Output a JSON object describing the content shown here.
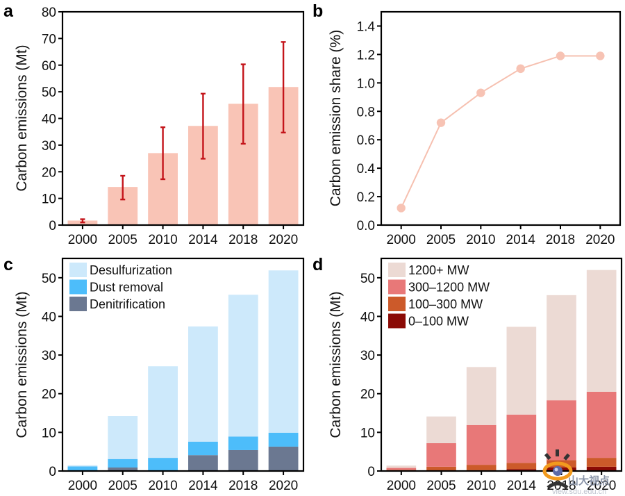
{
  "chart_data": [
    {
      "panel": "a",
      "type": "bar",
      "title": "",
      "xlabel": "",
      "ylabel": "Carbon emissions (Mt)",
      "categories": [
        "2000",
        "2005",
        "2010",
        "2014",
        "2018",
        "2020"
      ],
      "values": [
        1.7,
        14.3,
        27.0,
        37.2,
        45.5,
        51.8
      ],
      "error_low": [
        1.0,
        9.6,
        17.2,
        24.9,
        30.5,
        34.7
      ],
      "error_high": [
        2.2,
        18.5,
        36.7,
        49.3,
        60.3,
        68.7
      ],
      "ylim": [
        0,
        80
      ],
      "yticks": [
        0,
        10,
        20,
        30,
        40,
        50,
        60,
        70,
        80
      ],
      "colors": {
        "bar": "#f9c4b6",
        "error": "#c4141a"
      },
      "grid": false
    },
    {
      "panel": "b",
      "type": "line",
      "title": "",
      "xlabel": "",
      "ylabel": "Carbon emission share (%)",
      "categories": [
        "2000",
        "2005",
        "2010",
        "2014",
        "2018",
        "2020"
      ],
      "values": [
        0.12,
        0.72,
        0.93,
        1.1,
        1.19,
        1.19
      ],
      "ylim": [
        0,
        1.5
      ],
      "yticks": [
        "0.0",
        "0.2",
        "0.4",
        "0.6",
        "0.8",
        "1.0",
        "1.2",
        "1.4"
      ],
      "colors": {
        "line": "#f6c0b0",
        "marker": "#f7c3b4"
      },
      "grid": false
    },
    {
      "panel": "c",
      "type": "bar",
      "stacked": true,
      "title": "",
      "xlabel": "",
      "ylabel": "Carbon emissions (Mt)",
      "categories": [
        "2000",
        "2005",
        "2010",
        "2014",
        "2018",
        "2020"
      ],
      "series": [
        {
          "name": "Denitrification",
          "color": "#6b7891",
          "values": [
            0.0,
            0.9,
            0.0,
            4.1,
            5.4,
            6.3
          ]
        },
        {
          "name": "Dust removal",
          "color": "#4dbdfa",
          "values": [
            1.2,
            2.2,
            3.4,
            3.5,
            3.5,
            3.6
          ]
        },
        {
          "name": "Desulfurization",
          "color": "#cde9fb",
          "values": [
            0.3,
            11.1,
            23.7,
            29.8,
            36.7,
            42.0
          ]
        }
      ],
      "legend_order": [
        "Desulfurization",
        "Dust removal",
        "Denitrification"
      ],
      "legend_position": "top-left",
      "ylim": [
        0,
        55
      ],
      "yticks": [
        0,
        10,
        20,
        30,
        40,
        50
      ],
      "grid": false
    },
    {
      "panel": "d",
      "type": "bar",
      "stacked": true,
      "title": "",
      "xlabel": "",
      "ylabel": "Carbon emissions (Mt)",
      "categories": [
        "2000",
        "2005",
        "2010",
        "2014",
        "2018",
        "2020"
      ],
      "series": [
        {
          "name": "0–100 MW",
          "color": "#8b0a05",
          "values": [
            0.1,
            0.1,
            0.2,
            0.5,
            0.9,
            1.1
          ]
        },
        {
          "name": "100–300 MW",
          "color": "#cc5a2a",
          "values": [
            0.2,
            1.0,
            1.4,
            1.6,
            1.9,
            2.3
          ]
        },
        {
          "name": "300–1200 MW",
          "color": "#e87878",
          "values": [
            0.5,
            6.1,
            10.3,
            12.5,
            15.5,
            17.1
          ]
        },
        {
          "name": "1200+ MW",
          "color": "#ecdad4",
          "values": [
            0.6,
            6.9,
            15.0,
            22.7,
            27.2,
            31.5
          ]
        }
      ],
      "legend_order": [
        "1200+ MW",
        "300–1200 MW",
        "100–300 MW",
        "0–100 MW"
      ],
      "legend_position": "top-left",
      "ylim": [
        0,
        55
      ],
      "yticks": [
        0,
        10,
        20,
        30,
        40,
        50
      ],
      "grid": false
    }
  ],
  "watermark": {
    "text": "山大视点",
    "url": "view.sdu.edu.cn"
  }
}
